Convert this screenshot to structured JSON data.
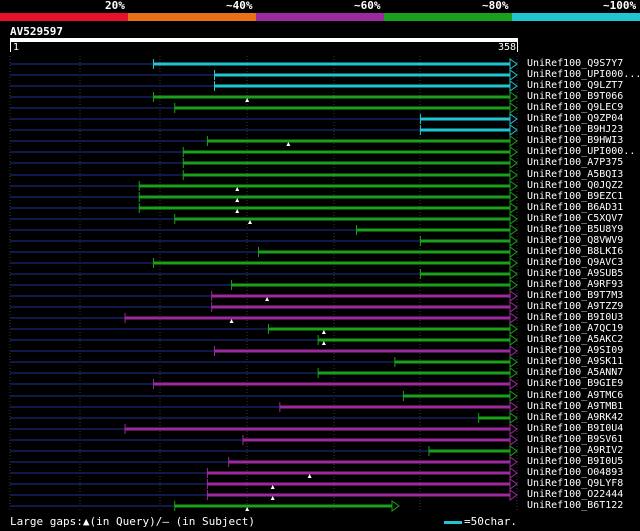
{
  "identity_scale": [
    {
      "label": "20%",
      "color": "#e8102a"
    },
    {
      "label": "~40%",
      "color": "#e8701a"
    },
    {
      "label": "~60%",
      "color": "#9c2a9c"
    },
    {
      "label": "~80%",
      "color": "#1aa01a"
    },
    {
      "label": "~100%",
      "color": "#1fc6d0"
    }
  ],
  "query": {
    "name": "AV529597",
    "start": "1",
    "end": "358"
  },
  "colors": {
    "cyan": "#1fc6d0",
    "green": "#1aa01a",
    "purple": "#9c2a9c",
    "dark": "#101a4a",
    "grid": "#3a3a3a"
  },
  "query_length": 358,
  "hits": [
    {
      "name": "UniRef100_Q9S7Y7",
      "color": "cyan",
      "qstart": 102,
      "gap": null
    },
    {
      "name": "UniRef100_UPI000...",
      "color": "cyan",
      "qstart": 145,
      "gap": null
    },
    {
      "name": "UniRef100_Q9LZT7",
      "color": "cyan",
      "qstart": 145,
      "gap": null
    },
    {
      "name": "UniRef100_B9T066",
      "color": "green",
      "qstart": 102,
      "gap": 168
    },
    {
      "name": "UniRef100_Q9LEC9",
      "color": "green",
      "qstart": 117,
      "gap": null
    },
    {
      "name": "UniRef100_Q9ZP04",
      "color": "cyan",
      "qstart": 290,
      "gap": null
    },
    {
      "name": "UniRef100_B9HJ23",
      "color": "cyan",
      "qstart": 290,
      "gap": null
    },
    {
      "name": "UniRef100_B9HWI3",
      "color": "green",
      "qstart": 140,
      "gap": 197
    },
    {
      "name": "UniRef100_UPI000..",
      "color": "green",
      "qstart": 123,
      "gap": null
    },
    {
      "name": "UniRef100_A7P375",
      "color": "green",
      "qstart": 123,
      "gap": null
    },
    {
      "name": "UniRef100_A5BQI3",
      "color": "green",
      "qstart": 123,
      "gap": null
    },
    {
      "name": "UniRef100_Q0JQZ2",
      "color": "green",
      "qstart": 92,
      "gap": 161
    },
    {
      "name": "UniRef100_B9EZC1",
      "color": "green",
      "qstart": 92,
      "gap": 161
    },
    {
      "name": "UniRef100_B6AD31",
      "color": "green",
      "qstart": 92,
      "gap": 161
    },
    {
      "name": "UniRef100_C5XQV7",
      "color": "green",
      "qstart": 117,
      "gap": 170
    },
    {
      "name": "UniRef100_B5U8Y9",
      "color": "green",
      "qstart": 245,
      "gap": null
    },
    {
      "name": "UniRef100_Q8VWV9",
      "color": "green",
      "qstart": 290,
      "gap": null
    },
    {
      "name": "UniRef100_B8LKI6",
      "color": "green",
      "qstart": 176,
      "gap": null
    },
    {
      "name": "UniRef100_Q9AVC3",
      "color": "green",
      "qstart": 102,
      "gap": null
    },
    {
      "name": "UniRef100_A9SUB5",
      "color": "green",
      "qstart": 290,
      "gap": null
    },
    {
      "name": "UniRef100_A9RF93",
      "color": "green",
      "qstart": 157,
      "gap": null
    },
    {
      "name": "UniRef100_B9T7M3",
      "color": "purple",
      "qstart": 143,
      "gap": 182
    },
    {
      "name": "UniRef100_A9TZZ9",
      "color": "purple",
      "qstart": 143,
      "gap": null
    },
    {
      "name": "UniRef100_B9I0U3",
      "color": "purple",
      "qstart": 82,
      "gap": 157
    },
    {
      "name": "UniRef100_A7QC19",
      "color": "green",
      "qstart": 183,
      "gap": 222
    },
    {
      "name": "UniRef100_A5AKC2",
      "color": "green",
      "qstart": 218,
      "gap": 222
    },
    {
      "name": "UniRef100_A9SI09",
      "color": "purple",
      "qstart": 145,
      "gap": null
    },
    {
      "name": "UniRef100_A9SK11",
      "color": "green",
      "qstart": 272,
      "gap": null
    },
    {
      "name": "UniRef100_A5ANN7",
      "color": "green",
      "qstart": 218,
      "gap": null
    },
    {
      "name": "UniRef100_B9GIE9",
      "color": "purple",
      "qstart": 102,
      "gap": null
    },
    {
      "name": "UniRef100_A9TMC6",
      "color": "green",
      "qstart": 278,
      "gap": null
    },
    {
      "name": "UniRef100_A9TMB1",
      "color": "purple",
      "qstart": 191,
      "gap": null
    },
    {
      "name": "UniRef100_A9RK42",
      "color": "green",
      "qstart": 331,
      "gap": null
    },
    {
      "name": "UniRef100_B9I0U4",
      "color": "purple",
      "qstart": 82,
      "gap": null
    },
    {
      "name": "UniRef100_B9SV61",
      "color": "purple",
      "qstart": 165,
      "gap": null
    },
    {
      "name": "UniRef100_A9RIV2",
      "color": "green",
      "qstart": 296,
      "gap": null
    },
    {
      "name": "UniRef100_B9I0U5",
      "color": "purple",
      "qstart": 155,
      "gap": null
    },
    {
      "name": "UniRef100_O04893",
      "color": "purple",
      "qstart": 140,
      "gap": 212
    },
    {
      "name": "UniRef100_Q9LYF8",
      "color": "purple",
      "qstart": 140,
      "gap": 186
    },
    {
      "name": "UniRef100_O22444",
      "color": "purple",
      "qstart": 140,
      "gap": 186
    },
    {
      "name": "UniRef100_B6T122",
      "color": "green",
      "qstart": 117,
      "gap": 168
    }
  ],
  "legend": {
    "text": "Large gaps:▲(in Query)/– (in Subject)",
    "scale_text": "=50char."
  }
}
